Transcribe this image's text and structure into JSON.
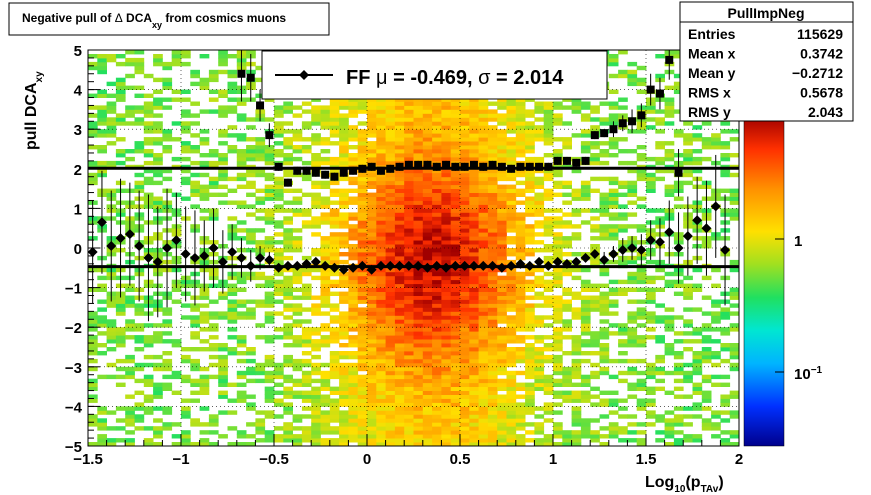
{
  "title": {
    "main": "Negative pull of ",
    "delta": "Δ",
    "var": " DCA",
    "sub": "xy",
    "tail": " from cosmics muons"
  },
  "ylabel": {
    "main": "pull DCA",
    "sub": "xy"
  },
  "xlabel": {
    "main": "Log",
    "sub1": "10",
    "mid": "(p",
    "sub2": "TAv",
    "tail": ")"
  },
  "legend": {
    "prefix": "FF ",
    "mu": "μ",
    "eq1": " = -0.469, ",
    "sigma": "σ",
    "eq2": " =   2.014"
  },
  "stats": {
    "title": "PullImpNeg",
    "rows": [
      {
        "label": "Entries",
        "value": "115629"
      },
      {
        "label": "Mean x",
        "value": "0.3742"
      },
      {
        "label": "Mean y",
        "value": "−0.2712"
      },
      {
        "label": "RMS x",
        "value": "0.5678"
      },
      {
        "label": "RMS y",
        "value": "2.043"
      }
    ]
  },
  "colorbar": {
    "labels": [
      {
        "main": "1",
        "sup": ""
      },
      {
        "main": "10",
        "sup": "−1"
      }
    ]
  },
  "chart_data": {
    "type": "heatmap",
    "xlim": [
      -1.5,
      2
    ],
    "ylim": [
      -5,
      5
    ],
    "xticks": [
      "−1.5",
      "−1",
      "−0.5",
      "0",
      "0.5",
      "1",
      "1.5",
      "2"
    ],
    "yticks": [
      "−5",
      "−4",
      "−3",
      "−2",
      "−1",
      "0",
      "1",
      "2",
      "3",
      "4",
      "5"
    ],
    "grid": true,
    "mean_line": -0.469,
    "sigma_line": 2.014,
    "mean_points": {
      "x": [
        -1.475,
        -1.425,
        -1.375,
        -1.325,
        -1.275,
        -1.225,
        -1.175,
        -1.125,
        -1.075,
        -1.025,
        -0.975,
        -0.925,
        -0.875,
        -0.825,
        -0.775,
        -0.725,
        -0.675,
        -0.625,
        -0.575,
        -0.525,
        -0.475,
        -0.425,
        -0.375,
        -0.325,
        -0.275,
        -0.225,
        -0.175,
        -0.125,
        -0.075,
        -0.025,
        0.025,
        0.075,
        0.125,
        0.175,
        0.225,
        0.275,
        0.325,
        0.375,
        0.425,
        0.475,
        0.525,
        0.575,
        0.625,
        0.675,
        0.725,
        0.775,
        0.825,
        0.875,
        0.925,
        0.975,
        1.025,
        1.075,
        1.125,
        1.175,
        1.225,
        1.275,
        1.325,
        1.375,
        1.425,
        1.475,
        1.525,
        1.575,
        1.625,
        1.675,
        1.725,
        1.775,
        1.825,
        1.875,
        1.925
      ],
      "y": [
        -0.1,
        0.65,
        0.05,
        0.25,
        0.35,
        0.05,
        -0.25,
        -0.35,
        0.0,
        0.2,
        -0.15,
        -0.25,
        -0.2,
        0.0,
        -0.35,
        -0.1,
        -0.25,
        -0.45,
        -0.25,
        -0.3,
        -0.5,
        -0.45,
        -0.45,
        -0.4,
        -0.35,
        -0.45,
        -0.5,
        -0.55,
        -0.5,
        -0.45,
        -0.55,
        -0.45,
        -0.45,
        -0.45,
        -0.45,
        -0.45,
        -0.5,
        -0.45,
        -0.5,
        -0.45,
        -0.45,
        -0.45,
        -0.45,
        -0.45,
        -0.5,
        -0.45,
        -0.4,
        -0.45,
        -0.35,
        -0.45,
        -0.35,
        -0.4,
        -0.35,
        -0.25,
        -0.15,
        -0.3,
        -0.15,
        -0.05,
        0.0,
        -0.05,
        0.2,
        0.15,
        0.4,
        0.0,
        0.3,
        0.7,
        0.5,
        1.05,
        -0.05
      ],
      "err": [
        1.3,
        1.3,
        1.4,
        1.5,
        1.3,
        1.4,
        1.6,
        1.4,
        1.5,
        1.2,
        1.2,
        1.2,
        0.9,
        1.0,
        0.8,
        0.7,
        0.5,
        0.4,
        0.3,
        0.2,
        0.1,
        0.1,
        0.1,
        0.1,
        0.1,
        0.1,
        0.1,
        0.1,
        0.1,
        0.1,
        0.1,
        0.1,
        0.1,
        0.1,
        0.1,
        0.1,
        0.1,
        0.1,
        0.1,
        0.1,
        0.1,
        0.1,
        0.1,
        0.1,
        0.1,
        0.1,
        0.1,
        0.1,
        0.1,
        0.1,
        0.1,
        0.1,
        0.1,
        0.1,
        0.1,
        0.2,
        0.2,
        0.3,
        0.3,
        0.4,
        0.5,
        0.6,
        0.8,
        0.9,
        1.0,
        1.1,
        1.2,
        1.3,
        1.4
      ]
    },
    "sigma_points": {
      "x": [
        -0.675,
        -0.625,
        -0.575,
        -0.525,
        -0.475,
        -0.425,
        -0.375,
        -0.325,
        -0.275,
        -0.225,
        -0.175,
        -0.125,
        -0.075,
        -0.025,
        0.025,
        0.075,
        0.125,
        0.175,
        0.225,
        0.275,
        0.325,
        0.375,
        0.425,
        0.475,
        0.525,
        0.575,
        0.625,
        0.675,
        0.725,
        0.775,
        0.825,
        0.875,
        0.925,
        0.975,
        1.025,
        1.075,
        1.125,
        1.175,
        1.225,
        1.275,
        1.325,
        1.375,
        1.425,
        1.475,
        1.525,
        1.575,
        1.625,
        1.675
      ],
      "y": [
        4.4,
        4.3,
        3.6,
        2.85,
        2.05,
        1.65,
        1.95,
        1.95,
        1.9,
        1.85,
        1.8,
        1.9,
        1.95,
        2.0,
        2.05,
        1.95,
        2.0,
        2.05,
        2.1,
        2.1,
        2.1,
        2.05,
        2.1,
        2.05,
        2.05,
        2.1,
        2.05,
        2.1,
        2.05,
        2.0,
        2.05,
        2.05,
        2.05,
        2.05,
        2.2,
        2.2,
        2.15,
        2.2,
        2.85,
        2.9,
        3.0,
        3.15,
        3.2,
        3.35,
        4.0,
        3.9,
        4.75,
        1.9
      ],
      "err": [
        0.7,
        0.6,
        0.4,
        0.3,
        0.1,
        0.1,
        0.1,
        0.1,
        0.1,
        0.1,
        0.1,
        0.1,
        0.1,
        0.1,
        0.1,
        0.1,
        0.1,
        0.1,
        0.1,
        0.1,
        0.1,
        0.1,
        0.1,
        0.1,
        0.1,
        0.1,
        0.1,
        0.1,
        0.1,
        0.1,
        0.1,
        0.1,
        0.1,
        0.1,
        0.1,
        0.1,
        0.1,
        0.1,
        0.1,
        0.1,
        0.2,
        0.2,
        0.3,
        0.3,
        0.4,
        0.4,
        0.5,
        0.6
      ]
    },
    "colors": {
      "marker": "#000000",
      "cold": "#00008c",
      "hot": "#a00000"
    }
  }
}
